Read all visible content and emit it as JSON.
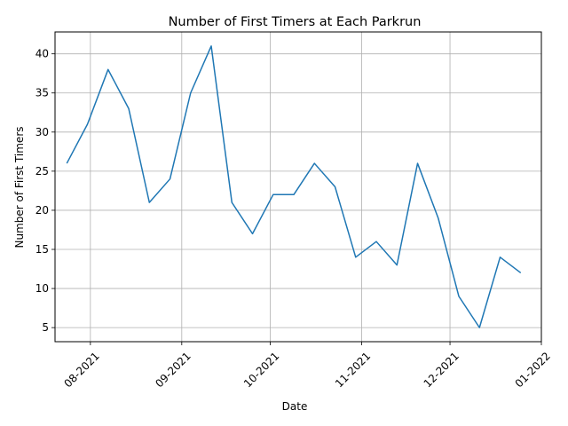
{
  "chart_data": {
    "type": "line",
    "title": "Number of First Timers at Each Parkrun",
    "xlabel": "Date",
    "ylabel": "Number of First Timers",
    "grid": true,
    "legend": "none",
    "series_color": "#1f77b4",
    "xlim": [
      "2021-07-20",
      "2022-01-01"
    ],
    "ylim": [
      3.2,
      42.8
    ],
    "x_ticks": [
      {
        "date": "2021-08-01",
        "label": "08-2021"
      },
      {
        "date": "2021-09-01",
        "label": "09-2021"
      },
      {
        "date": "2021-10-01",
        "label": "10-2021"
      },
      {
        "date": "2021-11-01",
        "label": "11-2021"
      },
      {
        "date": "2021-12-01",
        "label": "12-2021"
      },
      {
        "date": "2022-01-01",
        "label": "01-2022"
      }
    ],
    "y_ticks": [
      5,
      10,
      15,
      20,
      25,
      30,
      35,
      40
    ],
    "series": [
      {
        "points": [
          {
            "x": "2021-07-24",
            "y": 26
          },
          {
            "x": "2021-07-31",
            "y": 31
          },
          {
            "x": "2021-08-07",
            "y": 38
          },
          {
            "x": "2021-08-14",
            "y": 33
          },
          {
            "x": "2021-08-21",
            "y": 21
          },
          {
            "x": "2021-08-28",
            "y": 24
          },
          {
            "x": "2021-09-04",
            "y": 35
          },
          {
            "x": "2021-09-11",
            "y": 41
          },
          {
            "x": "2021-09-18",
            "y": 21
          },
          {
            "x": "2021-09-25",
            "y": 17
          },
          {
            "x": "2021-10-02",
            "y": 22
          },
          {
            "x": "2021-10-09",
            "y": 22
          },
          {
            "x": "2021-10-16",
            "y": 26
          },
          {
            "x": "2021-10-23",
            "y": 23
          },
          {
            "x": "2021-10-30",
            "y": 14
          },
          {
            "x": "2021-11-06",
            "y": 16
          },
          {
            "x": "2021-11-13",
            "y": 13
          },
          {
            "x": "2021-11-20",
            "y": 26
          },
          {
            "x": "2021-11-27",
            "y": 19
          },
          {
            "x": "2021-12-04",
            "y": 9
          },
          {
            "x": "2021-12-11",
            "y": 5
          },
          {
            "x": "2021-12-18",
            "y": 14
          },
          {
            "x": "2021-12-25",
            "y": 12
          }
        ]
      }
    ]
  }
}
